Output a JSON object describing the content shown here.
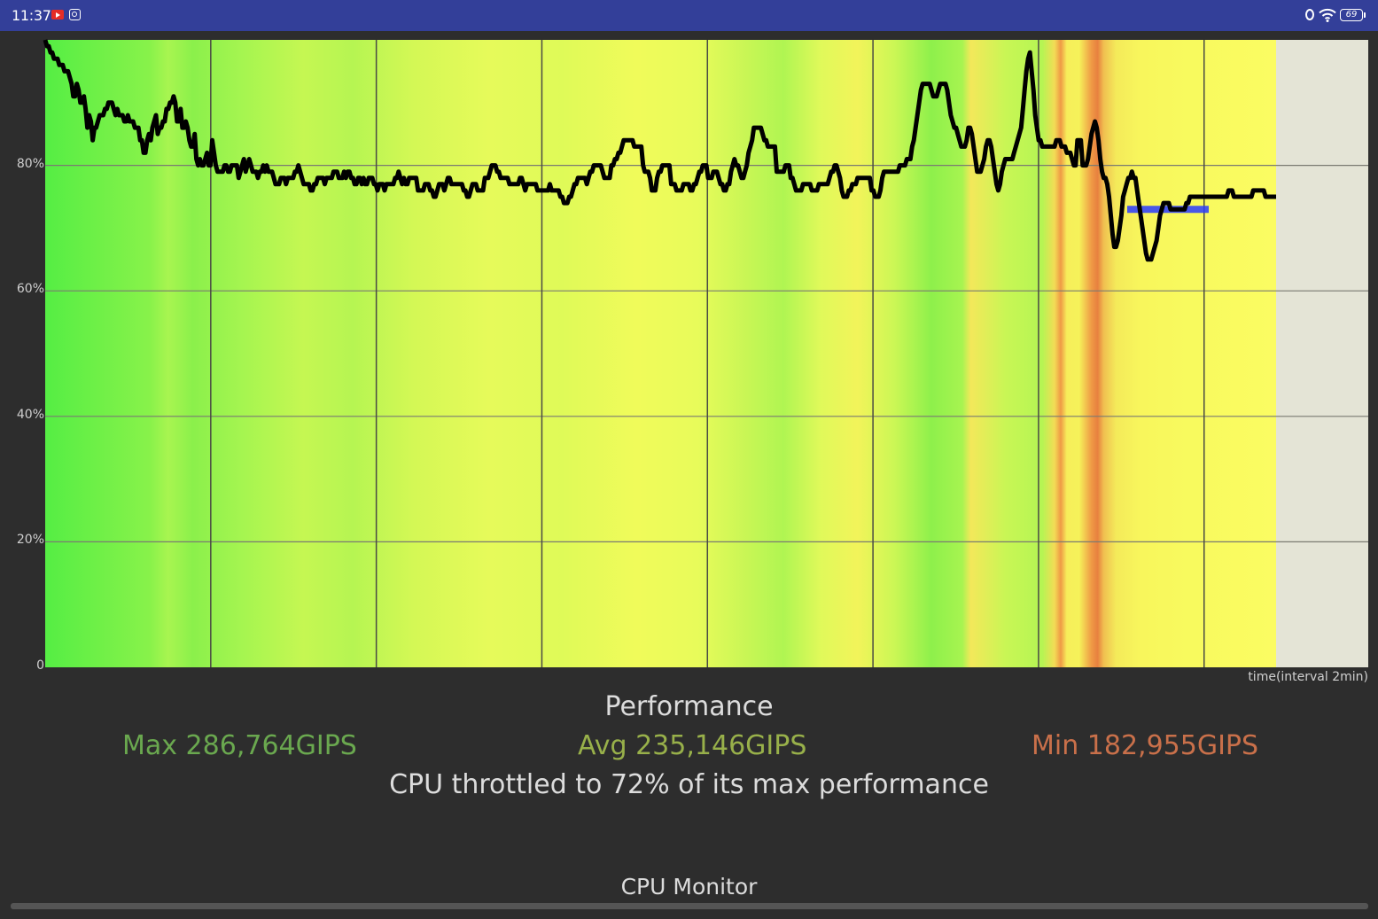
{
  "status_bar": {
    "time": "11:37",
    "battery": "69",
    "icons": [
      "youtube-icon",
      "app-icon",
      "nfc-icon",
      "wifi-icon",
      "battery-icon"
    ]
  },
  "chart_data": {
    "type": "line",
    "title": "",
    "xlabel": "time(interval 2min)",
    "ylabel": "",
    "ylim": [
      0,
      100
    ],
    "y_ticks": [
      "0",
      "20%",
      "40%",
      "60%",
      "80%"
    ],
    "x_grid_interval_minutes": 2,
    "grid": true,
    "threshold_line_value": 73,
    "series": [
      {
        "values": [
          100,
          99,
          99,
          98,
          98,
          97,
          97,
          97,
          96,
          96,
          96,
          95,
          95,
          95,
          94,
          93,
          91,
          91,
          93,
          92,
          90,
          90,
          91,
          89,
          86,
          88,
          87,
          84,
          86,
          86,
          87,
          88,
          88,
          88,
          89,
          89,
          90,
          90,
          90,
          89,
          88,
          89,
          88,
          88,
          88,
          87,
          87,
          88,
          87,
          87,
          87,
          86,
          86,
          86,
          84,
          84,
          82,
          82,
          84,
          85,
          84,
          86,
          87,
          88,
          85,
          86,
          86,
          87,
          87,
          89,
          89,
          90,
          90,
          91,
          90,
          87,
          87,
          89,
          86,
          86,
          87,
          86,
          84,
          83,
          83,
          85,
          81,
          80,
          81,
          80,
          80,
          81,
          82,
          80,
          80,
          84,
          82,
          80,
          79,
          79,
          79,
          79,
          80,
          80,
          79,
          79,
          80,
          80,
          80,
          80,
          78,
          79,
          80,
          81,
          79,
          80,
          81,
          80,
          79,
          79,
          79,
          78,
          79,
          79,
          80,
          79,
          80,
          79,
          79,
          79,
          78,
          77,
          77,
          77,
          78,
          78,
          78,
          77,
          78,
          78,
          78,
          78,
          79,
          79,
          80,
          79,
          78,
          77,
          77,
          77,
          77,
          76,
          76,
          77,
          77,
          78,
          78,
          78,
          78,
          77,
          78,
          78,
          78,
          78,
          79,
          79,
          79,
          78,
          78,
          78,
          79,
          78,
          79,
          79,
          78,
          78,
          77,
          77,
          78,
          78,
          77,
          78,
          77,
          77,
          78,
          78,
          78,
          77,
          77,
          76,
          77,
          77,
          77,
          76,
          77,
          77,
          77,
          77,
          77,
          78,
          78,
          79,
          78,
          77,
          78,
          77,
          77,
          78,
          78,
          78,
          78,
          78,
          76,
          76,
          76,
          76,
          77,
          77,
          77,
          76,
          76,
          75,
          75,
          76,
          77,
          77,
          77,
          76,
          77,
          78,
          78,
          77,
          77,
          77,
          77,
          77,
          77,
          77,
          76,
          76,
          75,
          75,
          76,
          77,
          77,
          77,
          76,
          76,
          76,
          76,
          78,
          78,
          78,
          79,
          80,
          80,
          80,
          79,
          79,
          78,
          78,
          78,
          78,
          78,
          77,
          77,
          77,
          77,
          77,
          77,
          78,
          78,
          77,
          76,
          77,
          77,
          77,
          77,
          77,
          77,
          76,
          76,
          76,
          76,
          76,
          76,
          76,
          77,
          76,
          76,
          76,
          76,
          76,
          75,
          75,
          74,
          74,
          74,
          75,
          75,
          76,
          77,
          77,
          78,
          78,
          78,
          78,
          78,
          77,
          78,
          79,
          79,
          80,
          80,
          80,
          80,
          80,
          79,
          78,
          78,
          78,
          78,
          80,
          80,
          81,
          81,
          82,
          82,
          83,
          84,
          84,
          84,
          84,
          84,
          84,
          83,
          83,
          83,
          83,
          83,
          80,
          79,
          79,
          79,
          78,
          76,
          76,
          76,
          78,
          79,
          79,
          80,
          80,
          80,
          80,
          80,
          77,
          77,
          77,
          76,
          76,
          76,
          76,
          77,
          77,
          77,
          77,
          76,
          76,
          77,
          77,
          78,
          79,
          79,
          80,
          80,
          80,
          78,
          78,
          78,
          79,
          79,
          79,
          78,
          77,
          77,
          76,
          76,
          77,
          77,
          79,
          80,
          81,
          80,
          80,
          79,
          78,
          78,
          79,
          80,
          82,
          83,
          84,
          86,
          86,
          86,
          86,
          86,
          85,
          84,
          84,
          83,
          83,
          83,
          83,
          83,
          79,
          79,
          79,
          79,
          79,
          80,
          80,
          80,
          78,
          78,
          77,
          76,
          76,
          76,
          76,
          77,
          77,
          77,
          77,
          77,
          76,
          76,
          76,
          76,
          77,
          77,
          77,
          77,
          77,
          77,
          78,
          79,
          79,
          80,
          80,
          79,
          78,
          76,
          75,
          75,
          75,
          76,
          76,
          77,
          77,
          77,
          78,
          78,
          78,
          78,
          78,
          78,
          78,
          78,
          76,
          76,
          75,
          75,
          75,
          76,
          78,
          79,
          79,
          79,
          79,
          79,
          79,
          79,
          79,
          79,
          80,
          80,
          80,
          80,
          81,
          81,
          81,
          83,
          84,
          86,
          88,
          90,
          92,
          93,
          93,
          93,
          93,
          93,
          92,
          91,
          91,
          91,
          92,
          93,
          93,
          93,
          93,
          92,
          90,
          88,
          87,
          86,
          86,
          85,
          84,
          83,
          83,
          83,
          84,
          86,
          86,
          85,
          83,
          81,
          79,
          79,
          79,
          80,
          81,
          83,
          84,
          84,
          83,
          81,
          79,
          77,
          76,
          77,
          79,
          80,
          81,
          81,
          81,
          81,
          81,
          82,
          83,
          84,
          85,
          86,
          89,
          92,
          95,
          97,
          98,
          95,
          92,
          88,
          86,
          84,
          84,
          83,
          83,
          83,
          83,
          83,
          83,
          83,
          83,
          84,
          84,
          84,
          83,
          83,
          83,
          82,
          82,
          82,
          81,
          80,
          80,
          84,
          84,
          84,
          80,
          80,
          80,
          81,
          83,
          85,
          86,
          87,
          86,
          84,
          81,
          79,
          78,
          78,
          77,
          75,
          72,
          69,
          67,
          67,
          68,
          70,
          72,
          75,
          76,
          77,
          78,
          78,
          79,
          78,
          78,
          76,
          74,
          72,
          70,
          68,
          66,
          65,
          65,
          65,
          66,
          67,
          68,
          70,
          72,
          73,
          74,
          74,
          74,
          74,
          73,
          73,
          73,
          73,
          73,
          73,
          73,
          73,
          73,
          74,
          74,
          75,
          75,
          75,
          75,
          75,
          75,
          75,
          75,
          75,
          75,
          75,
          75,
          75,
          75,
          75,
          75,
          75,
          75,
          75,
          75,
          75,
          75,
          76,
          76,
          76,
          75,
          75,
          75,
          75,
          75,
          75,
          75,
          75,
          75,
          75,
          75,
          76,
          76,
          76,
          76,
          76,
          76,
          76,
          75,
          75,
          75,
          75,
          75,
          75,
          75
        ]
      }
    ],
    "colors": {
      "line": "#000000",
      "threshold": "#2a3bff",
      "plot_bg": "#e4e4d6",
      "grid": "#7a7a72"
    }
  },
  "stats": {
    "title": "Performance",
    "max": "Max 286,764GIPS",
    "avg": "Avg 235,146GIPS",
    "min": "Min 182,955GIPS",
    "throttle": "CPU throttled to 72% of its max performance",
    "colors": {
      "max": "#6aa84f",
      "avg": "#98b04a",
      "min": "#c9704a"
    }
  },
  "monitor": {
    "title": "CPU Monitor"
  }
}
